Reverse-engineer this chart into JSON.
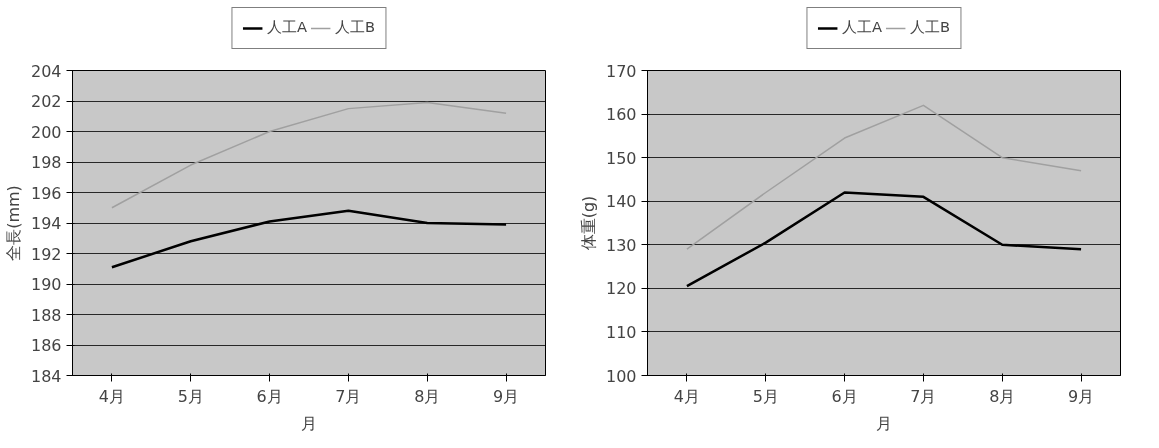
{
  "chart_data": [
    {
      "type": "line",
      "categories": [
        "4月",
        "5月",
        "6月",
        "7月",
        "8月",
        "9月"
      ],
      "xlabel": "月",
      "ylabel": "全長(mm)",
      "ylim": [
        184,
        204
      ],
      "yticks": [
        184,
        186,
        188,
        190,
        192,
        194,
        196,
        198,
        200,
        202,
        204
      ],
      "grid": "y",
      "legend": "top",
      "series": [
        {
          "name": "人工A",
          "color": "#000000",
          "values": [
            191.1,
            192.8,
            194.1,
            194.8,
            194.0,
            193.9
          ]
        },
        {
          "name": "人工B",
          "color": "#a0a0a0",
          "values": [
            195.0,
            197.8,
            200.0,
            201.5,
            201.9,
            201.2
          ]
        }
      ]
    },
    {
      "type": "line",
      "categories": [
        "4月",
        "5月",
        "6月",
        "7月",
        "8月",
        "9月"
      ],
      "xlabel": "月",
      "ylabel": "体重(g)",
      "ylim": [
        100,
        170
      ],
      "yticks": [
        100,
        110,
        120,
        130,
        140,
        150,
        160,
        170
      ],
      "grid": "y",
      "legend": "top",
      "series": [
        {
          "name": "人工A",
          "color": "#000000",
          "values": [
            120.5,
            130.5,
            142,
            141,
            130,
            129
          ]
        },
        {
          "name": "人工B",
          "color": "#a0a0a0",
          "values": [
            129,
            142,
            154.5,
            162,
            150,
            147
          ]
        }
      ]
    }
  ]
}
